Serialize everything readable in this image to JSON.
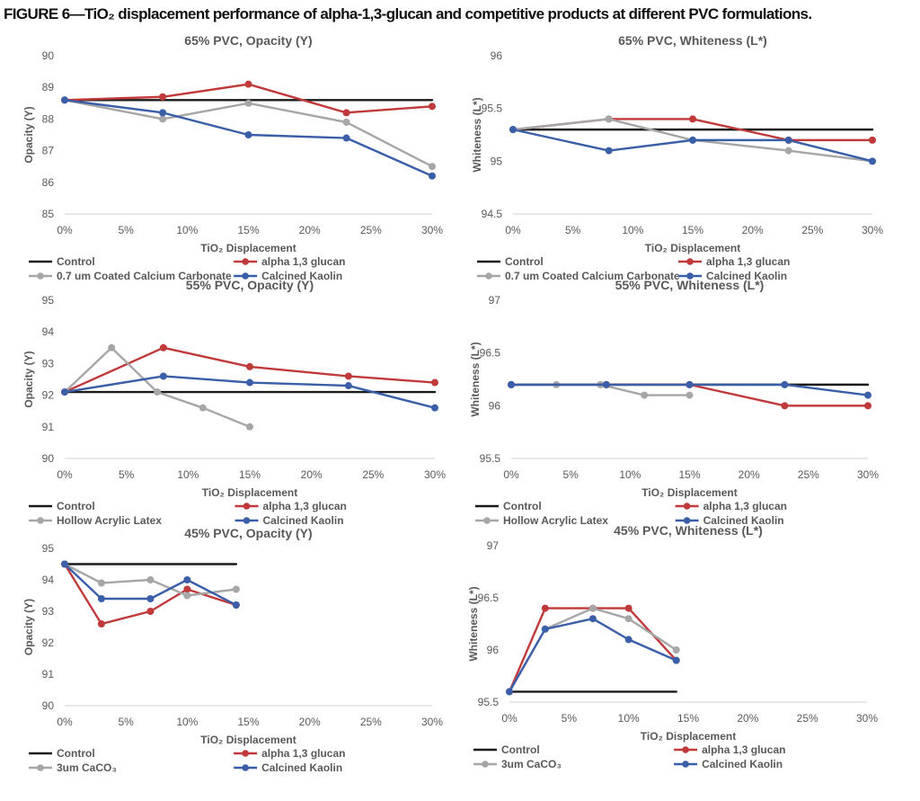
{
  "figure": {
    "title": "FIGURE 6—TiO₂ displacement performance of alpha-1,3-glucan and competitive products at different PVC formulations."
  },
  "colors": {
    "control": "#1a1a1a",
    "glucan": "#c0393b",
    "competitor": "#a6a6a6",
    "kaolin": "#3a5ea8",
    "axis": "#d9d9d9",
    "text": "#595959"
  },
  "chart_data": [
    {
      "type": "line",
      "title": "65% PVC, Opacity (Y)",
      "xlabel": "TiO₂ Displacement",
      "ylabel": "Opacity (Y)",
      "xlim": [
        0,
        30
      ],
      "ylim": [
        85,
        90
      ],
      "yticks": [
        "85",
        "86",
        "87",
        "88",
        "89",
        "90"
      ],
      "xticks": [
        "0%",
        "5%",
        "10%",
        "15%",
        "20%",
        "25%",
        "30%"
      ],
      "series": [
        {
          "name": "Control",
          "color": "#1a1a1a",
          "markers": false,
          "points": [
            [
              0,
              88.6
            ],
            [
              30,
              88.6
            ]
          ]
        },
        {
          "name": "alpha 1,3 glucan",
          "color": "#c0393b",
          "markers": true,
          "points": [
            [
              0,
              88.6
            ],
            [
              8,
              88.7
            ],
            [
              15,
              89.1
            ],
            [
              23,
              88.2
            ],
            [
              30,
              88.4
            ]
          ]
        },
        {
          "name": "0.7 um Coated Calcium Carbonate",
          "color": "#a6a6a6",
          "markers": true,
          "points": [
            [
              0,
              88.6
            ],
            [
              8,
              88.0
            ],
            [
              15,
              88.5
            ],
            [
              23,
              87.9
            ],
            [
              30,
              86.5
            ]
          ]
        },
        {
          "name": "Calcined Kaolin",
          "color": "#3a5ea8",
          "markers": true,
          "points": [
            [
              0,
              88.6
            ],
            [
              8,
              88.2
            ],
            [
              15,
              87.5
            ],
            [
              23,
              87.4
            ],
            [
              30,
              86.2
            ]
          ]
        }
      ]
    },
    {
      "type": "line",
      "title": "65% PVC, Whiteness (L*)",
      "xlabel": "TiO₂ Displacement",
      "ylabel": "Whiteness (L*)",
      "xlim": [
        0,
        30
      ],
      "ylim": [
        94.5,
        96
      ],
      "yticks": [
        "94.5",
        "95",
        "95.5",
        "96"
      ],
      "xticks": [
        "0%",
        "5%",
        "10%",
        "15%",
        "20%",
        "25%",
        "30%"
      ],
      "series": [
        {
          "name": "Control",
          "color": "#1a1a1a",
          "markers": false,
          "points": [
            [
              0,
              95.3
            ],
            [
              30,
              95.3
            ]
          ]
        },
        {
          "name": "alpha 1,3 glucan",
          "color": "#c0393b",
          "markers": true,
          "points": [
            [
              0,
              95.3
            ],
            [
              8,
              95.4
            ],
            [
              15,
              95.4
            ],
            [
              23,
              95.2
            ],
            [
              30,
              95.2
            ]
          ]
        },
        {
          "name": "0.7 um Coated Calcium Carbonate",
          "color": "#a6a6a6",
          "markers": true,
          "points": [
            [
              0,
              95.3
            ],
            [
              8,
              95.4
            ],
            [
              15,
              95.2
            ],
            [
              23,
              95.1
            ],
            [
              30,
              95.0
            ]
          ]
        },
        {
          "name": "Calcined Kaolin",
          "color": "#3a5ea8",
          "markers": true,
          "points": [
            [
              0,
              95.3
            ],
            [
              8,
              95.1
            ],
            [
              15,
              95.2
            ],
            [
              23,
              95.2
            ],
            [
              30,
              95.0
            ]
          ]
        }
      ]
    },
    {
      "type": "line",
      "title": "55% PVC, Opacity (Y)",
      "xlabel": "TiO₂ Displacement",
      "ylabel": "Opacity (Y)",
      "xlim": [
        0,
        30
      ],
      "ylim": [
        90,
        95
      ],
      "yticks": [
        "90",
        "91",
        "92",
        "93",
        "94",
        "95"
      ],
      "xticks": [
        "0%",
        "5%",
        "10%",
        "15%",
        "20%",
        "25%",
        "30%"
      ],
      "series": [
        {
          "name": "Control",
          "color": "#1a1a1a",
          "markers": false,
          "points": [
            [
              0,
              92.1
            ],
            [
              30,
              92.1
            ]
          ]
        },
        {
          "name": "alpha 1,3 glucan",
          "color": "#c0393b",
          "markers": true,
          "points": [
            [
              0,
              92.1
            ],
            [
              8,
              93.5
            ],
            [
              15,
              92.9
            ],
            [
              23,
              92.6
            ],
            [
              30,
              92.4
            ]
          ]
        },
        {
          "name": "Hollow Acrylic Latex",
          "color": "#a6a6a6",
          "markers": true,
          "points": [
            [
              0,
              92.1
            ],
            [
              3.8,
              93.5
            ],
            [
              7.5,
              92.1
            ],
            [
              11.2,
              91.6
            ],
            [
              15,
              91.0
            ]
          ]
        },
        {
          "name": "Calcined Kaolin",
          "color": "#3a5ea8",
          "markers": true,
          "points": [
            [
              0,
              92.1
            ],
            [
              8,
              92.6
            ],
            [
              15,
              92.4
            ],
            [
              23,
              92.3
            ],
            [
              30,
              91.6
            ]
          ]
        }
      ]
    },
    {
      "type": "line",
      "title": "55% PVC, Whiteness (L*)",
      "xlabel": "TiO₂ Displacement",
      "ylabel": "Whiteness (L*)",
      "xlim": [
        0,
        30
      ],
      "ylim": [
        95.5,
        97
      ],
      "yticks": [
        "95.5",
        "96",
        "96.5",
        "97"
      ],
      "xticks": [
        "0%",
        "5%",
        "10%",
        "15%",
        "20%",
        "25%",
        "30%"
      ],
      "series": [
        {
          "name": "Control",
          "color": "#1a1a1a",
          "markers": false,
          "points": [
            [
              0,
              96.2
            ],
            [
              30,
              96.2
            ]
          ]
        },
        {
          "name": "alpha 1,3 glucan",
          "color": "#c0393b",
          "markers": true,
          "points": [
            [
              0,
              96.2
            ],
            [
              8,
              96.2
            ],
            [
              15,
              96.2
            ],
            [
              23,
              96.0
            ],
            [
              30,
              96.0
            ]
          ]
        },
        {
          "name": "Hollow Acrylic Latex",
          "color": "#a6a6a6",
          "markers": true,
          "points": [
            [
              0,
              96.2
            ],
            [
              3.8,
              96.2
            ],
            [
              7.5,
              96.2
            ],
            [
              11.2,
              96.1
            ],
            [
              15,
              96.1
            ]
          ]
        },
        {
          "name": "Calcined Kaolin",
          "color": "#3a5ea8",
          "markers": true,
          "points": [
            [
              0,
              96.2
            ],
            [
              8,
              96.2
            ],
            [
              15,
              96.2
            ],
            [
              23,
              96.2
            ],
            [
              30,
              96.1
            ]
          ]
        }
      ]
    },
    {
      "type": "line",
      "title": "45% PVC, Opacity (Y)",
      "xlabel": "TiO₂ Displacement",
      "ylabel": "Opacity (Y)",
      "xlim": [
        0,
        30
      ],
      "ylim": [
        90,
        95
      ],
      "yticks": [
        "90",
        "91",
        "92",
        "93",
        "94",
        "95"
      ],
      "xticks": [
        "0%",
        "5%",
        "10%",
        "15%",
        "20%",
        "25%",
        "30%"
      ],
      "series": [
        {
          "name": "Control",
          "color": "#1a1a1a",
          "markers": false,
          "points": [
            [
              0,
              94.5
            ],
            [
              14,
              94.5
            ]
          ]
        },
        {
          "name": "alpha 1,3 glucan",
          "color": "#c0393b",
          "markers": true,
          "points": [
            [
              0,
              94.5
            ],
            [
              3,
              92.6
            ],
            [
              7,
              93.0
            ],
            [
              10,
              93.7
            ],
            [
              14,
              93.2
            ]
          ]
        },
        {
          "name": "3um CaCO₃",
          "color": "#a6a6a6",
          "markers": true,
          "points": [
            [
              0,
              94.5
            ],
            [
              3,
              93.9
            ],
            [
              7,
              94.0
            ],
            [
              10,
              93.5
            ],
            [
              14,
              93.7
            ]
          ]
        },
        {
          "name": "Calcined Kaolin",
          "color": "#3a5ea8",
          "markers": true,
          "points": [
            [
              0,
              94.5
            ],
            [
              3,
              93.4
            ],
            [
              7,
              93.4
            ],
            [
              10,
              94.0
            ],
            [
              14,
              93.2
            ]
          ]
        }
      ]
    },
    {
      "type": "line",
      "title": "45% PVC, Whiteness (L*)",
      "xlabel": "TiO₂ Displacement",
      "ylabel": "Whiteness (L*)",
      "xlim": [
        0,
        30
      ],
      "ylim": [
        95.5,
        97
      ],
      "yticks": [
        "95.5",
        "96",
        "96.5",
        "97"
      ],
      "xticks": [
        "0%",
        "5%",
        "10%",
        "15%",
        "20%",
        "25%",
        "30%"
      ],
      "series": [
        {
          "name": "Control",
          "color": "#1a1a1a",
          "markers": false,
          "points": [
            [
              0,
              95.6
            ],
            [
              14,
              95.6
            ]
          ]
        },
        {
          "name": "alpha 1,3 glucan",
          "color": "#c0393b",
          "markers": true,
          "points": [
            [
              0,
              95.6
            ],
            [
              3,
              96.4
            ],
            [
              7,
              96.4
            ],
            [
              10,
              96.4
            ],
            [
              14,
              95.9
            ]
          ]
        },
        {
          "name": "3um CaCO₃",
          "color": "#a6a6a6",
          "markers": true,
          "points": [
            [
              0,
              95.6
            ],
            [
              3,
              96.2
            ],
            [
              7,
              96.4
            ],
            [
              10,
              96.3
            ],
            [
              14,
              96.0
            ]
          ]
        },
        {
          "name": "Calcined Kaolin",
          "color": "#3a5ea8",
          "markers": true,
          "points": [
            [
              0,
              95.6
            ],
            [
              3,
              96.2
            ],
            [
              7,
              96.3
            ],
            [
              10,
              96.1
            ],
            [
              14,
              95.9
            ]
          ]
        }
      ]
    }
  ]
}
